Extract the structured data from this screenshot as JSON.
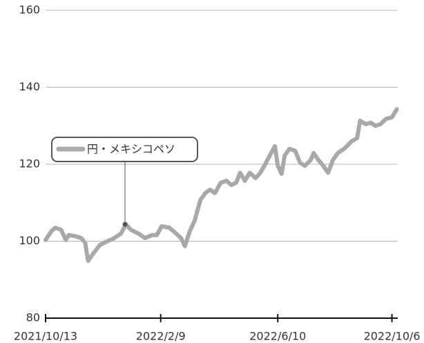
{
  "chart_data": {
    "type": "line",
    "legend": "円・メキシコペソ",
    "color": "#a8a8a8",
    "grid": true,
    "x": [
      "2021/10/13",
      "2021/10/19",
      "2021/10/23",
      "2021/10/29",
      "2021/11/3",
      "2021/11/6",
      "2021/11/13",
      "2021/11/19",
      "2021/11/23",
      "2021/11/26",
      "2021/12/1",
      "2021/12/8",
      "2021/12/15",
      "2021/12/23",
      "2021/12/30",
      "2022/1/4",
      "2022/1/9",
      "2022/1/17",
      "2022/1/24",
      "2022/1/31",
      "2022/2/5",
      "2022/2/10",
      "2022/2/18",
      "2022/2/25",
      "2022/3/2",
      "2022/3/6",
      "2022/3/11",
      "2022/3/16",
      "2022/3/22",
      "2022/3/27",
      "2022/4/1",
      "2022/4/6",
      "2022/4/12",
      "2022/4/18",
      "2022/4/23",
      "2022/4/28",
      "2022/5/2",
      "2022/5/7",
      "2022/5/12",
      "2022/5/18",
      "2022/5/23",
      "2022/5/28",
      "2022/6/3",
      "2022/6/7",
      "2022/6/10",
      "2022/6/14",
      "2022/6/17",
      "2022/6/22",
      "2022/6/28",
      "2022/7/3",
      "2022/7/8",
      "2022/7/14",
      "2022/7/17",
      "2022/7/22",
      "2022/7/27",
      "2022/8/1",
      "2022/8/6",
      "2022/8/11",
      "2022/8/18",
      "2022/8/25",
      "2022/8/31",
      "2022/9/3",
      "2022/9/9",
      "2022/9/14",
      "2022/9/19",
      "2022/9/24",
      "2022/9/30",
      "2022/10/6",
      "2022/10/11"
    ],
    "values": [
      100.3,
      102.6,
      103.5,
      103,
      100.3,
      101.6,
      101.3,
      100.8,
      99.5,
      94.9,
      96.7,
      99,
      99.9,
      100.8,
      102,
      104.4,
      103,
      102,
      100.8,
      101.6,
      101.6,
      103.9,
      103.5,
      102,
      100.8,
      98.7,
      102.6,
      105.3,
      110.7,
      112.5,
      113.4,
      112.5,
      115.2,
      115.7,
      114.6,
      115.2,
      117.8,
      115.7,
      117.8,
      116.4,
      117.8,
      120,
      122.9,
      124.7,
      119.6,
      117.5,
      122.2,
      124,
      123.5,
      120.4,
      119.6,
      121.1,
      122.9,
      121.1,
      119.6,
      117.8,
      121.1,
      122.9,
      124.1,
      125.9,
      126.8,
      131.3,
      130.4,
      130.8,
      130,
      130.4,
      131.8,
      132.2,
      134.3
    ],
    "xlim": [
      "2021/10/13",
      "2022/10/12"
    ],
    "xticks": [
      "2021/10/13",
      "2022/2/9",
      "2022/6/10",
      "2022/10/6"
    ],
    "ylim": [
      80,
      160
    ],
    "yticks": [
      80,
      100,
      120,
      140,
      160
    ]
  }
}
